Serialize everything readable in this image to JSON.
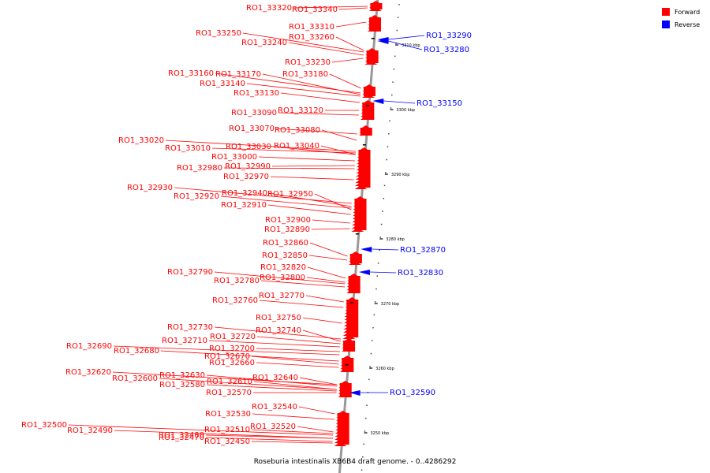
{
  "legend": {
    "forward_label": "Forward",
    "reverse_label": "Reverse",
    "forward_color": "#ff0000",
    "reverse_color": "#0000ff"
  },
  "caption": "Roseburia intestinalis XB6B4 draft genome. - 0..4286292",
  "genome_length": 4286292,
  "scale_ticks": [
    "3310 kbp",
    "3300 kbp",
    "3290 kbp",
    "3280 kbp",
    "3270 kbp",
    "3260 kbp",
    "3250 kbp"
  ],
  "forward_genes": [
    "RO1_33320",
    "RO1_33340",
    "RO1_33310",
    "RO1_33250",
    "RO1_33260",
    "RO1_33240",
    "RO1_33230",
    "RO1_33160",
    "RO1_33170",
    "RO1_33180",
    "RO1_33140",
    "RO1_33130",
    "RO1_33120",
    "RO1_33090",
    "RO1_33070",
    "RO1_33080",
    "RO1_33020",
    "RO1_33010",
    "RO1_33030",
    "RO1_33040",
    "RO1_33000",
    "RO1_32980",
    "RO1_32990",
    "RO1_32970",
    "RO1_32930",
    "RO1_32940",
    "RO1_32950",
    "RO1_32920",
    "RO1_32910",
    "RO1_32900",
    "RO1_32890",
    "RO1_32860",
    "RO1_32850",
    "RO1_32820",
    "RO1_32790",
    "RO1_32780",
    "RO1_32800",
    "RO1_32770",
    "RO1_32760",
    "RO1_32750",
    "RO1_32730",
    "RO1_32740",
    "RO1_32720",
    "RO1_32710",
    "RO1_32690",
    "RO1_32700",
    "RO1_32680",
    "RO1_32670",
    "RO1_32660",
    "RO1_32620",
    "RO1_32630",
    "RO1_32640",
    "RO1_32600",
    "RO1_32610",
    "RO1_32580",
    "RO1_32570",
    "RO1_32540",
    "RO1_32530",
    "RO1_32520",
    "RO1_32500",
    "RO1_32510",
    "RO1_32490",
    "RO1_32480",
    "RO1_32470",
    "RO1_32450"
  ],
  "reverse_genes": [
    "RO1_33290",
    "RO1_33280",
    "RO1_33150",
    "RO1_32870",
    "RO1_32830",
    "RO1_32590"
  ]
}
